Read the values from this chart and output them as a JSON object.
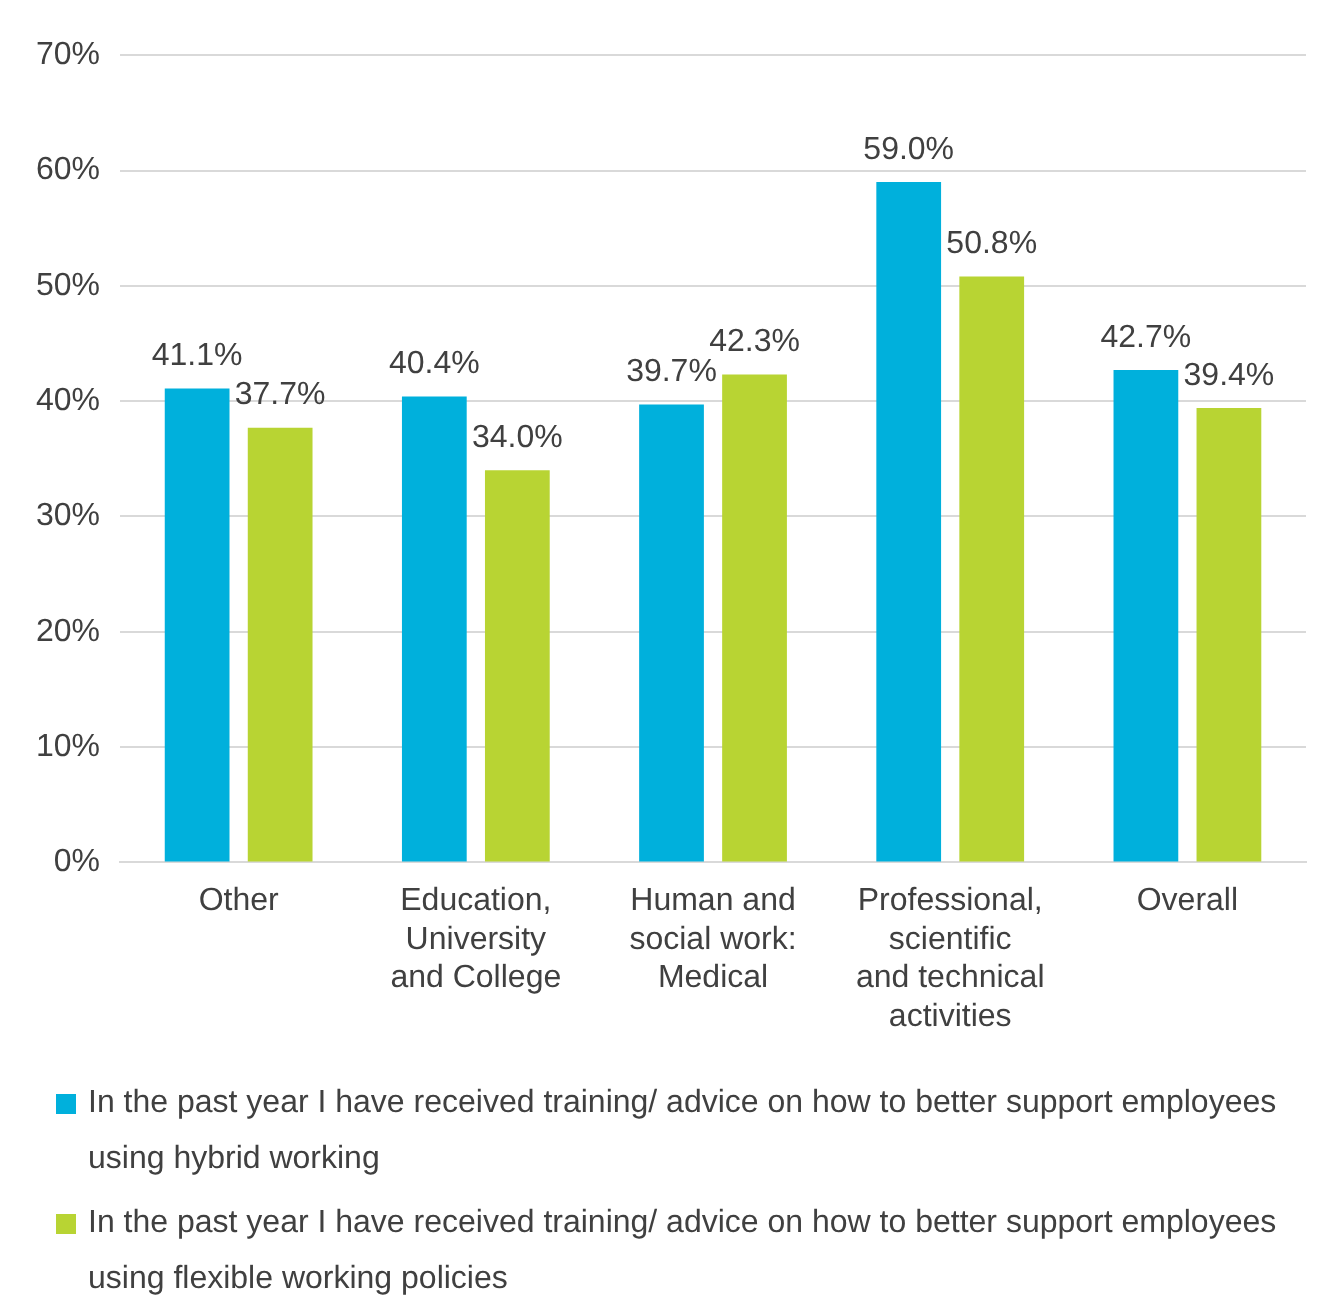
{
  "chart_data": {
    "type": "bar",
    "categories": [
      "Other",
      "Education, University and College",
      "Human and social work: Medical",
      "Professional, scientific and technical activities",
      "Overall"
    ],
    "series": [
      {
        "name": "In the past year I have received training/ advice on how to better support employees using hybrid working",
        "color": "#00b0dc",
        "values": [
          41.1,
          40.4,
          39.7,
          59.0,
          42.7
        ]
      },
      {
        "name": "In the past year I have received training/ advice on how to better support employees using flexible working policies",
        "color": "#b8d433",
        "values": [
          37.7,
          34.0,
          42.3,
          50.8,
          39.4
        ]
      }
    ],
    "ylim": [
      0,
      70
    ],
    "yticks": [
      {
        "value": 0,
        "label": "0%"
      },
      {
        "value": 10,
        "label": "10%"
      },
      {
        "value": 20,
        "label": "20%"
      },
      {
        "value": 30,
        "label": "30%"
      },
      {
        "value": 40,
        "label": "40%"
      },
      {
        "value": 50,
        "label": "50%"
      },
      {
        "value": 60,
        "label": "60%"
      },
      {
        "value": 70,
        "label": "70%"
      }
    ],
    "value_labels": [
      [
        "41.1%",
        "40.4%",
        "39.7%",
        "59.0%",
        "42.7%"
      ],
      [
        "37.7%",
        "34.0%",
        "42.3%",
        "50.8%",
        "39.4%"
      ]
    ],
    "grid": "y",
    "legend": "bottom"
  }
}
